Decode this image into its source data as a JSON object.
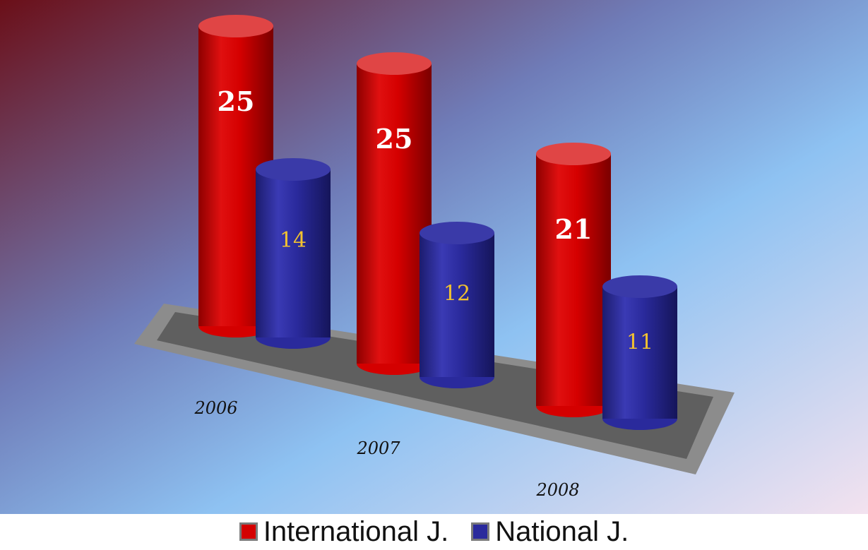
{
  "chart_data": {
    "type": "bar",
    "style": "3d-cylinder",
    "categories": [
      "2006",
      "2007",
      "2008"
    ],
    "series": [
      {
        "name": "International J.",
        "values": [
          25,
          25,
          21
        ],
        "color": "#d40000",
        "label_color": "#ffffff"
      },
      {
        "name": "National J.",
        "values": [
          14,
          12,
          11
        ],
        "color": "#2a2a9c",
        "label_color": "#f2c230"
      }
    ],
    "data_labels": [
      [
        "25",
        "25",
        "21"
      ],
      [
        "14",
        "12",
        "11"
      ]
    ],
    "legend_position": "bottom",
    "grid": false
  }
}
